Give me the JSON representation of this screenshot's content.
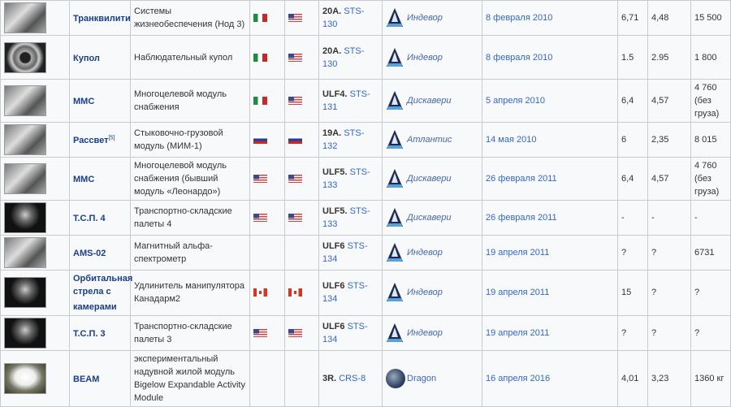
{
  "rows": [
    {
      "name": "Транквилити",
      "sup": "",
      "desc": "Системы жизнеобеспечения (Нод 3)",
      "flag1": "it",
      "flag2": "us",
      "flight": "20A.",
      "mission": "STS-130",
      "orbiter": "Индевор",
      "date": "8 февраля 2010",
      "length": "6,71",
      "diameter": "4,48",
      "mass": "15 500",
      "thumb": "",
      "h": 42
    },
    {
      "name": "Купол",
      "sup": "",
      "desc": "Наблюдательный купол",
      "flag1": "it",
      "flag2": "us",
      "flight": "20A.",
      "mission": "STS-130",
      "orbiter": "Индевор",
      "date": "8 февраля 2010",
      "length": "1.5",
      "diameter": "2.95",
      "mass": "1 800",
      "thumb": "cupola",
      "h": 54
    },
    {
      "name": "ММС",
      "sup": "",
      "desc": "Многоцелевой модуль снабжения",
      "flag1": "it",
      "flag2": "us",
      "flight": "ULF4.",
      "mission": "STS-131",
      "orbiter": "Дискавери",
      "date": "5 апреля 2010",
      "length": "6,4",
      "diameter": "4,57",
      "mass": "4 760 (без груза)",
      "thumb": "",
      "h": 52
    },
    {
      "name": "Рассвет",
      "sup": "[5]",
      "desc": "Стыковочно-грузовой модуль (МИМ-1)",
      "flag1": "ru",
      "flag2": "ru",
      "flight": "19A.",
      "mission": "STS-132",
      "orbiter": "Атлантис",
      "date": "14 мая 2010",
      "length": "6",
      "diameter": "2,35",
      "mass": "8 015",
      "thumb": "",
      "h": 38
    },
    {
      "name": "ММС",
      "sup": "",
      "desc": "Многоцелевой модуль снабжения (бывший модуль «Леонардо»)",
      "flag1": "us",
      "flag2": "us",
      "flight": "ULF5.",
      "mission": "STS-133",
      "orbiter": "Дискавери",
      "date": "26 февраля 2011",
      "length": "6,4",
      "diameter": "4,57",
      "mass": "4 760 (без груза)",
      "thumb": "",
      "h": 50
    },
    {
      "name": "Т.С.П. 4",
      "sup": "",
      "desc": "Транспортно-складские палеты 4",
      "flag1": "us",
      "flag2": "us",
      "flight": "ULF5.",
      "mission": "STS-133",
      "orbiter": "Дискавери",
      "date": "26 февраля 2011",
      "length": "-",
      "diameter": "-",
      "mass": "-",
      "thumb": "dark",
      "h": 39
    },
    {
      "name": "AMS-02",
      "sup": "",
      "desc": "Магнитный альфа-спектрометр",
      "flag1": "",
      "flag2": "",
      "flight": "ULF6",
      "mission": "STS-134",
      "orbiter": "Индевор",
      "date": "19 апреля 2011",
      "length": "?",
      "diameter": "?",
      "mass": "6731",
      "thumb": "",
      "h": 39
    },
    {
      "name": "Орбитальная стрела с камерами",
      "sup": "",
      "desc": "Удлинитель манипулятора Канадарм2",
      "flag1": "ca",
      "flag2": "ca",
      "flight": "ULF6",
      "mission": "STS-134",
      "orbiter": "Индевор",
      "date": "19 апреля 2011",
      "length": "15",
      "diameter": "?",
      "mass": "?",
      "thumb": "dark",
      "h": 52
    },
    {
      "name": "Т.С.П. 3",
      "sup": "",
      "desc": "Транспортно-складские палеты 3",
      "flag1": "us",
      "flag2": "us",
      "flight": "ULF6",
      "mission": "STS-134",
      "orbiter": "Индевор",
      "date": "19 апреля 2011",
      "length": "?",
      "diameter": "?",
      "mass": "?",
      "thumb": "dark",
      "h": 36
    },
    {
      "name": "BEAM",
      "sup": "",
      "desc": "экспериментальный надувной жилой модуль Bigelow Expandable Activity Module",
      "flag1": "",
      "flag2": "",
      "flight": "3R.",
      "mission": "CRS-8",
      "orbiter": "Dragon",
      "date": "16 апреля 2016",
      "length": "4,01",
      "diameter": "3,23",
      "mass": "1360 кг",
      "thumb": "beam",
      "h": 68
    }
  ]
}
